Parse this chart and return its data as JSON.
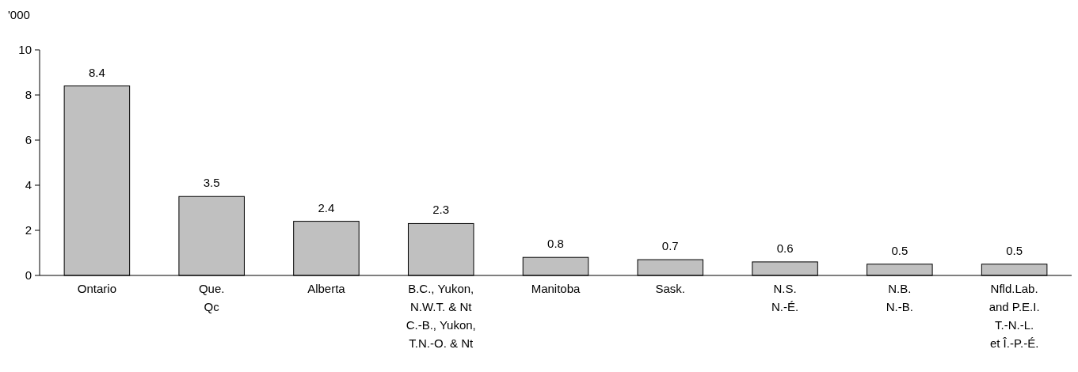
{
  "chart_data": {
    "type": "bar",
    "ylabel": "'000",
    "categories": [
      "Ontario",
      "Que.\nQc",
      "Alberta",
      "B.C., Yukon,\nN.W.T. & Nt\nC.-B., Yukon,\nT.N.-O. & Nt",
      "Manitoba",
      "Sask.",
      "N.S.\nN.-É.",
      "N.B.\nN.-B.",
      "Nfld.Lab.\nand P.E.I.\nT.-N.-L.\net Î.-P.-É."
    ],
    "values": [
      8.4,
      3.5,
      2.4,
      2.3,
      0.8,
      0.7,
      0.6,
      0.5,
      0.5
    ],
    "color": "#c0c0c0",
    "data_labels": true,
    "ylim": [
      0,
      10
    ],
    "yticks": [
      0,
      2,
      4,
      6,
      8,
      10
    ],
    "grid": false
  }
}
